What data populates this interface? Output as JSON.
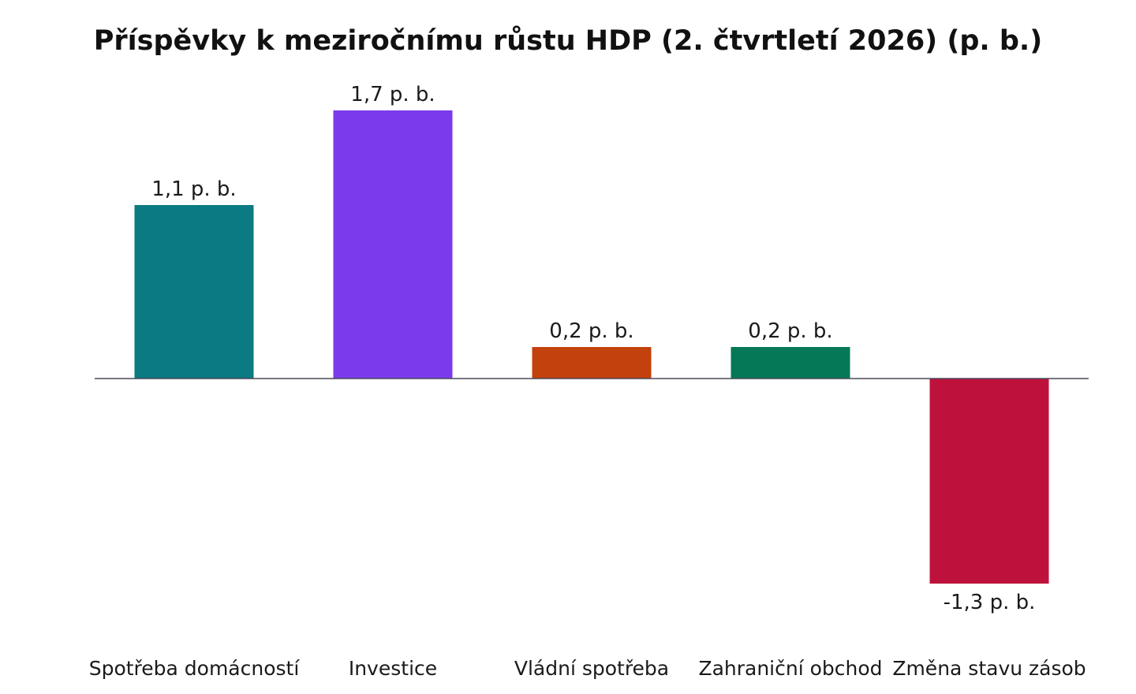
{
  "chart_data": {
    "type": "bar",
    "title": "Příspěvky k meziročnímu růstu HDP (2. čtvrtletí 2026) (p. b.)",
    "xlabel": "",
    "ylabel": "",
    "categories": [
      "Spotřeba domácností",
      "Investice",
      "Vládní spotřeba",
      "Zahraniční obchod",
      "Změna stavu zásob"
    ],
    "values": [
      1.1,
      1.7,
      0.2,
      0.2,
      -1.3
    ],
    "data_labels": [
      "1,1 p. b.",
      "1,7 p. b.",
      "0,2 p. b.",
      "0,2 p. b.",
      "-1,3 p. b."
    ],
    "colors": [
      "#0b7a82",
      "#7c3aed",
      "#c2410c",
      "#047857",
      "#be123c"
    ],
    "ylim": [
      -1.3,
      1.7
    ],
    "grid": false,
    "legend": "none",
    "baseline_color": "#4a4a5a"
  }
}
